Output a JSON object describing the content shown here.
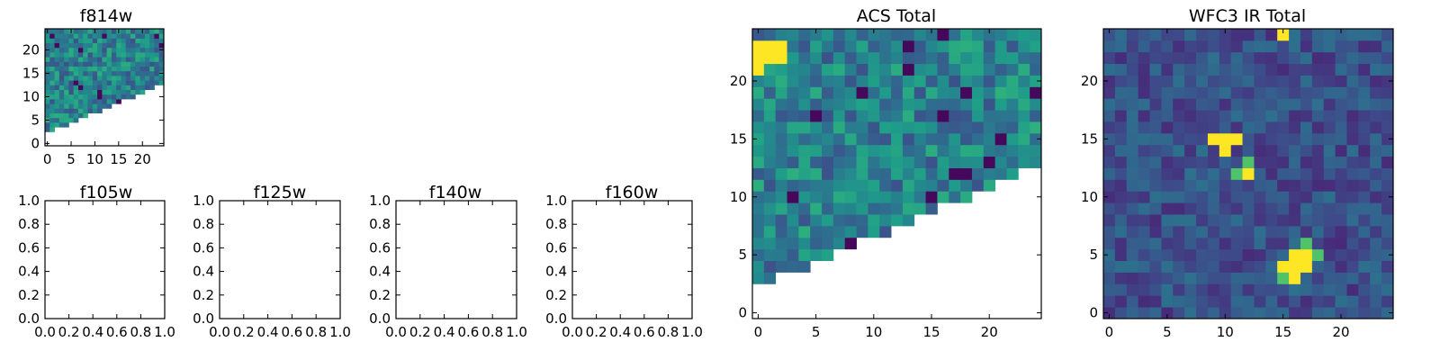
{
  "colormap": "viridis",
  "chart_data": [
    {
      "id": "f814w",
      "type": "heatmap",
      "title": "f814w",
      "xlim": [
        -0.5,
        24.5
      ],
      "ylim": [
        -0.5,
        24.5
      ],
      "xticks": [
        0,
        5,
        10,
        15,
        20
      ],
      "yticks": [
        0,
        5,
        10,
        15,
        20
      ],
      "masked_region": "lower-right triangle",
      "noise": "uniform"
    },
    {
      "id": "f105w",
      "type": "heatmap",
      "title": "f105w",
      "empty": true,
      "xlim": [
        0,
        1
      ],
      "ylim": [
        0,
        1
      ],
      "xticks": [
        "0.0",
        "0.2",
        "0.4",
        "0.6",
        "0.8",
        "1.0"
      ],
      "yticks": [
        "0.0",
        "0.2",
        "0.4",
        "0.6",
        "0.8",
        "1.0"
      ]
    },
    {
      "id": "f125w",
      "type": "heatmap",
      "title": "f125w",
      "empty": true,
      "xlim": [
        0,
        1
      ],
      "ylim": [
        0,
        1
      ],
      "xticks": [
        "0.0",
        "0.2",
        "0.4",
        "0.6",
        "0.8",
        "1.0"
      ],
      "yticks": [
        "0.0",
        "0.2",
        "0.4",
        "0.6",
        "0.8",
        "1.0"
      ]
    },
    {
      "id": "f140w",
      "type": "heatmap",
      "title": "f140w",
      "empty": true,
      "xlim": [
        0,
        1
      ],
      "ylim": [
        0,
        1
      ],
      "xticks": [
        "0.0",
        "0.2",
        "0.4",
        "0.6",
        "0.8",
        "1.0"
      ],
      "yticks": [
        "0.0",
        "0.2",
        "0.4",
        "0.6",
        "0.8",
        "1.0"
      ]
    },
    {
      "id": "f160w",
      "type": "heatmap",
      "title": "f160w",
      "empty": true,
      "xlim": [
        0,
        1
      ],
      "ylim": [
        0,
        1
      ],
      "xticks": [
        "0.0",
        "0.2",
        "0.4",
        "0.6",
        "0.8",
        "1.0"
      ],
      "yticks": [
        "0.0",
        "0.2",
        "0.4",
        "0.6",
        "0.8",
        "1.0"
      ]
    },
    {
      "id": "acs",
      "type": "heatmap",
      "title": "ACS Total",
      "xlim": [
        -0.5,
        24.5
      ],
      "ylim": [
        -0.5,
        24.5
      ],
      "xticks": [
        0,
        5,
        10,
        15,
        20
      ],
      "yticks": [
        0,
        5,
        10,
        15,
        20
      ],
      "masked_region": "lower-right triangle",
      "noise": "uniform",
      "bright_pixels": [
        {
          "x": 0,
          "y": 22,
          "w": 3,
          "h": 2
        },
        {
          "x": 0,
          "y": 21,
          "w": 1,
          "h": 1
        }
      ]
    },
    {
      "id": "wfc3",
      "type": "heatmap",
      "title": "WFC3 IR Total",
      "xlim": [
        -0.5,
        24.5
      ],
      "ylim": [
        -0.5,
        24.5
      ],
      "xticks": [
        0,
        5,
        10,
        15,
        20
      ],
      "yticks": [
        0,
        5,
        10,
        15,
        20
      ],
      "noise": "low",
      "bright_pixels": [
        {
          "x": 15,
          "y": 24,
          "w": 1,
          "h": 1
        },
        {
          "x": 9,
          "y": 15,
          "w": 3,
          "h": 1
        },
        {
          "x": 10,
          "y": 14,
          "w": 1,
          "h": 1
        },
        {
          "x": 12,
          "y": 12,
          "w": 1,
          "h": 1
        },
        {
          "x": 15,
          "y": 4,
          "w": 3,
          "h": 1
        },
        {
          "x": 16,
          "y": 5,
          "w": 2,
          "h": 1
        },
        {
          "x": 16,
          "y": 3,
          "w": 1,
          "h": 1
        }
      ],
      "mid_pixels": [
        {
          "x": 12,
          "y": 13
        },
        {
          "x": 17,
          "y": 6
        },
        {
          "x": 18,
          "y": 5
        },
        {
          "x": 15,
          "y": 3
        },
        {
          "x": 11,
          "y": 12
        }
      ]
    }
  ]
}
